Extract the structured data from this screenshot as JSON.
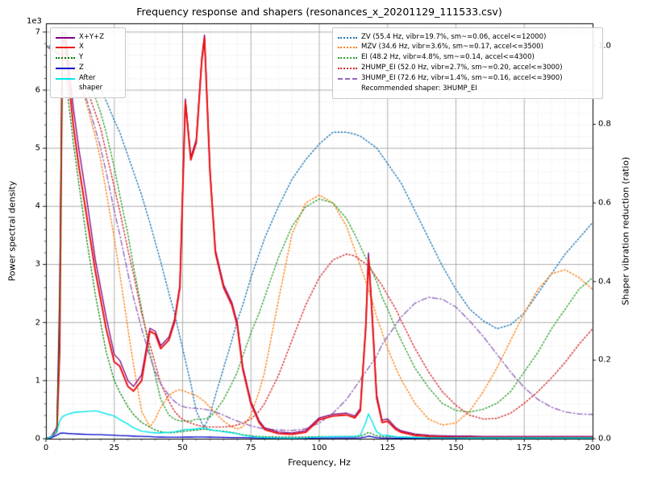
{
  "chart_data": {
    "type": "line",
    "title": "Frequency response and shapers (resonances_x_20201129_111533.csv)",
    "recommendation": "Recommended shaper: 3HUMP_EI",
    "grid": "both",
    "legend_positions": [
      "upper left",
      "upper right"
    ],
    "x": {
      "label": "Frequency, Hz",
      "min": 0,
      "max": 200,
      "ticks": [
        0,
        25,
        50,
        75,
        100,
        125,
        150,
        175,
        200
      ],
      "tick_labels": [
        "0",
        "25",
        "50",
        "75",
        "100",
        "125",
        "150",
        "175",
        "200"
      ],
      "minor_step": 5
    },
    "y_left": {
      "label": "Power spectral density",
      "offset_text": "1e3",
      "min": 0,
      "max": 7150,
      "ticks": [
        0,
        1000,
        2000,
        3000,
        4000,
        5000,
        6000,
        7000
      ],
      "tick_labels": [
        "0",
        "1",
        "2",
        "3",
        "4",
        "5",
        "6",
        "7"
      ],
      "minor_step": 200
    },
    "y_right": {
      "label": "Shaper vibration reduction (ratio)",
      "min": 0,
      "max": 1.057,
      "ticks": [
        0,
        0.2,
        0.4,
        0.6,
        0.8,
        1.0
      ],
      "tick_labels": [
        "0.0",
        "0.2",
        "0.4",
        "0.6",
        "0.8",
        "1.0"
      ]
    },
    "x_values": [
      0,
      2,
      4,
      5,
      6,
      7,
      8,
      10,
      12,
      15,
      18,
      20,
      22,
      25,
      27,
      30,
      32,
      35,
      38,
      40,
      42,
      45,
      47,
      49,
      51,
      53,
      55,
      57,
      58,
      60,
      62,
      65,
      68,
      70,
      72,
      75,
      78,
      80,
      85,
      90,
      95,
      100,
      105,
      110,
      113,
      115,
      117,
      118,
      119,
      121,
      123,
      125,
      128,
      130,
      135,
      140,
      145,
      150,
      155,
      160,
      165,
      170,
      175,
      180,
      185,
      190,
      195,
      200
    ],
    "left_series": [
      {
        "name": "X+Y+Z",
        "color": "#800080",
        "dash": "solid",
        "width": 1.3,
        "values": [
          0,
          40,
          200,
          2500,
          7000,
          7000,
          6600,
          5700,
          5000,
          4100,
          3100,
          2600,
          2100,
          1450,
          1350,
          1000,
          900,
          1100,
          1900,
          1850,
          1600,
          1750,
          2050,
          2650,
          5850,
          4850,
          5150,
          6550,
          6950,
          4650,
          3250,
          2650,
          2350,
          2000,
          1250,
          640,
          310,
          190,
          115,
          100,
          140,
          360,
          420,
          440,
          390,
          520,
          1950,
          3200,
          2450,
          760,
          320,
          340,
          190,
          135,
          80,
          60,
          50,
          45,
          45,
          40,
          40,
          40,
          40,
          40,
          40,
          40,
          40,
          40
        ]
      },
      {
        "name": "X",
        "color": "#ee1111",
        "dash": "solid",
        "width": 2.0,
        "values": [
          0,
          20,
          120,
          1500,
          6800,
          6900,
          6300,
          5400,
          4700,
          3800,
          2900,
          2400,
          1900,
          1320,
          1250,
          900,
          820,
          1000,
          1850,
          1800,
          1550,
          1700,
          2000,
          2600,
          5800,
          4800,
          5100,
          6500,
          6900,
          4600,
          3200,
          2600,
          2300,
          1950,
          1200,
          600,
          280,
          160,
          90,
          75,
          110,
          330,
          390,
          410,
          360,
          480,
          1900,
          3100,
          2400,
          700,
          280,
          300,
          160,
          110,
          60,
          40,
          30,
          25,
          25,
          20,
          20,
          20,
          20,
          20,
          20,
          20,
          20,
          20
        ]
      },
      {
        "name": "Y",
        "color": "#008000",
        "dash": "dot",
        "width": 1.3,
        "values": [
          0,
          30,
          150,
          2000,
          6500,
          6300,
          5900,
          5100,
          4400,
          3400,
          2500,
          2000,
          1500,
          1000,
          800,
          550,
          420,
          280,
          200,
          150,
          120,
          100,
          110,
          120,
          130,
          140,
          150,
          160,
          165,
          150,
          140,
          130,
          110,
          90,
          70,
          50,
          40,
          35,
          30,
          28,
          30,
          35,
          35,
          35,
          35,
          45,
          80,
          110,
          90,
          50,
          40,
          40,
          35,
          30,
          25,
          22,
          20,
          20,
          20,
          20,
          20,
          20,
          20,
          20,
          20,
          20,
          20,
          20
        ]
      },
      {
        "name": "Z",
        "color": "#0000cd",
        "dash": "solid",
        "width": 1.3,
        "values": [
          0,
          20,
          60,
          90,
          100,
          95,
          90,
          85,
          80,
          75,
          70,
          70,
          65,
          60,
          55,
          50,
          45,
          40,
          35,
          30,
          28,
          25,
          25,
          25,
          28,
          28,
          30,
          30,
          30,
          28,
          25,
          22,
          20,
          20,
          18,
          15,
          12,
          10,
          10,
          10,
          10,
          12,
          12,
          12,
          12,
          15,
          30,
          45,
          35,
          18,
          12,
          12,
          10,
          10,
          8,
          8,
          8,
          8,
          8,
          8,
          8,
          8,
          8,
          8,
          8,
          8,
          8,
          8
        ]
      },
      {
        "name": "After shaper",
        "color": "#00e5ee",
        "dash": "solid",
        "width": 1.4,
        "values": [
          0,
          30,
          120,
          300,
          380,
          400,
          420,
          450,
          460,
          470,
          480,
          460,
          430,
          390,
          330,
          250,
          190,
          130,
          110,
          100,
          100,
          110,
          120,
          140,
          160,
          160,
          170,
          180,
          185,
          160,
          140,
          120,
          100,
          85,
          60,
          40,
          25,
          18,
          12,
          10,
          15,
          30,
          35,
          40,
          40,
          60,
          280,
          430,
          330,
          120,
          60,
          55,
          35,
          28,
          20,
          15,
          12,
          12,
          10,
          10,
          10,
          10,
          10,
          10,
          10,
          10,
          10,
          10
        ]
      }
    ],
    "right_series": [
      {
        "name": "ZV (55.4 Hz, vibr=19.7%, sm~=0.06, accel<=12000)",
        "color": "#1f77b4",
        "dash": "dot",
        "width": 1.4,
        "values": [
          1.0,
          1.0,
          0.995,
          0.995,
          0.99,
          0.99,
          0.985,
          0.975,
          0.965,
          0.94,
          0.91,
          0.89,
          0.86,
          0.81,
          0.78,
          0.72,
          0.68,
          0.62,
          0.55,
          0.5,
          0.45,
          0.37,
          0.32,
          0.26,
          0.2,
          0.14,
          0.07,
          0.04,
          0.03,
          0.06,
          0.11,
          0.18,
          0.25,
          0.3,
          0.34,
          0.41,
          0.47,
          0.51,
          0.59,
          0.66,
          0.71,
          0.75,
          0.78,
          0.78,
          0.775,
          0.77,
          0.76,
          0.755,
          0.75,
          0.74,
          0.72,
          0.7,
          0.67,
          0.65,
          0.58,
          0.51,
          0.44,
          0.38,
          0.33,
          0.3,
          0.28,
          0.29,
          0.32,
          0.37,
          0.42,
          0.47,
          0.51,
          0.55
        ]
      },
      {
        "name": "MZV (34.6 Hz, vibr=3.6%, sm~=0.17, accel<=3500)",
        "color": "#ff7f0e",
        "dash": "dot",
        "width": 1.4,
        "values": [
          1.0,
          0.99,
          0.985,
          0.98,
          0.975,
          0.97,
          0.96,
          0.94,
          0.91,
          0.85,
          0.77,
          0.71,
          0.63,
          0.51,
          0.42,
          0.28,
          0.19,
          0.07,
          0.03,
          0.05,
          0.08,
          0.11,
          0.12,
          0.125,
          0.12,
          0.115,
          0.11,
          0.1,
          0.095,
          0.08,
          0.065,
          0.045,
          0.03,
          0.025,
          0.03,
          0.06,
          0.12,
          0.17,
          0.35,
          0.52,
          0.6,
          0.62,
          0.6,
          0.54,
          0.48,
          0.44,
          0.4,
          0.38,
          0.36,
          0.31,
          0.27,
          0.23,
          0.18,
          0.15,
          0.09,
          0.05,
          0.035,
          0.04,
          0.07,
          0.12,
          0.18,
          0.25,
          0.32,
          0.38,
          0.42,
          0.43,
          0.41,
          0.38
        ]
      },
      {
        "name": "EI (48.2 Hz, vibr=4.8%, sm~=0.14, accel<=4300)",
        "color": "#2ca02c",
        "dash": "dot",
        "width": 1.4,
        "values": [
          1.0,
          0.995,
          0.99,
          0.99,
          0.985,
          0.98,
          0.975,
          0.965,
          0.95,
          0.92,
          0.87,
          0.83,
          0.78,
          0.69,
          0.62,
          0.52,
          0.44,
          0.33,
          0.22,
          0.16,
          0.1,
          0.06,
          0.05,
          0.045,
          0.045,
          0.045,
          0.05,
          0.05,
          0.05,
          0.055,
          0.07,
          0.1,
          0.14,
          0.17,
          0.21,
          0.27,
          0.32,
          0.36,
          0.46,
          0.54,
          0.59,
          0.61,
          0.6,
          0.56,
          0.52,
          0.49,
          0.46,
          0.45,
          0.43,
          0.4,
          0.36,
          0.33,
          0.28,
          0.25,
          0.18,
          0.13,
          0.09,
          0.072,
          0.068,
          0.075,
          0.09,
          0.12,
          0.17,
          0.22,
          0.28,
          0.33,
          0.38,
          0.41
        ]
      },
      {
        "name": "2HUMP_EI (52.0 Hz, vibr=2.7%, sm~=0.20, accel<=3000)",
        "color": "#d62728",
        "dash": "dot",
        "width": 1.4,
        "values": [
          1.0,
          0.99,
          0.985,
          0.98,
          0.975,
          0.97,
          0.965,
          0.95,
          0.93,
          0.89,
          0.83,
          0.79,
          0.73,
          0.64,
          0.58,
          0.48,
          0.42,
          0.32,
          0.24,
          0.19,
          0.14,
          0.095,
          0.07,
          0.055,
          0.045,
          0.04,
          0.035,
          0.032,
          0.03,
          0.03,
          0.03,
          0.03,
          0.032,
          0.035,
          0.04,
          0.05,
          0.07,
          0.09,
          0.16,
          0.25,
          0.34,
          0.41,
          0.455,
          0.47,
          0.465,
          0.455,
          0.445,
          0.44,
          0.43,
          0.41,
          0.39,
          0.365,
          0.33,
          0.3,
          0.23,
          0.17,
          0.12,
          0.085,
          0.06,
          0.05,
          0.052,
          0.065,
          0.09,
          0.12,
          0.155,
          0.195,
          0.24,
          0.28
        ]
      },
      {
        "name": "3HUMP_EI (72.6 Hz, vibr=1.4%, sm~=0.16, accel<=3900)",
        "color": "#9467bd",
        "dash": "dashdot",
        "width": 1.4,
        "values": [
          1.0,
          0.99,
          0.98,
          0.975,
          0.97,
          0.965,
          0.955,
          0.935,
          0.91,
          0.86,
          0.79,
          0.74,
          0.68,
          0.58,
          0.52,
          0.42,
          0.36,
          0.28,
          0.21,
          0.17,
          0.14,
          0.11,
          0.095,
          0.085,
          0.08,
          0.078,
          0.077,
          0.076,
          0.075,
          0.072,
          0.068,
          0.06,
          0.05,
          0.045,
          0.04,
          0.033,
          0.028,
          0.025,
          0.022,
          0.021,
          0.025,
          0.04,
          0.065,
          0.1,
          0.13,
          0.15,
          0.17,
          0.18,
          0.19,
          0.21,
          0.24,
          0.26,
          0.29,
          0.31,
          0.345,
          0.36,
          0.355,
          0.335,
          0.3,
          0.26,
          0.215,
          0.17,
          0.13,
          0.1,
          0.08,
          0.068,
          0.063,
          0.062
        ]
      }
    ]
  }
}
